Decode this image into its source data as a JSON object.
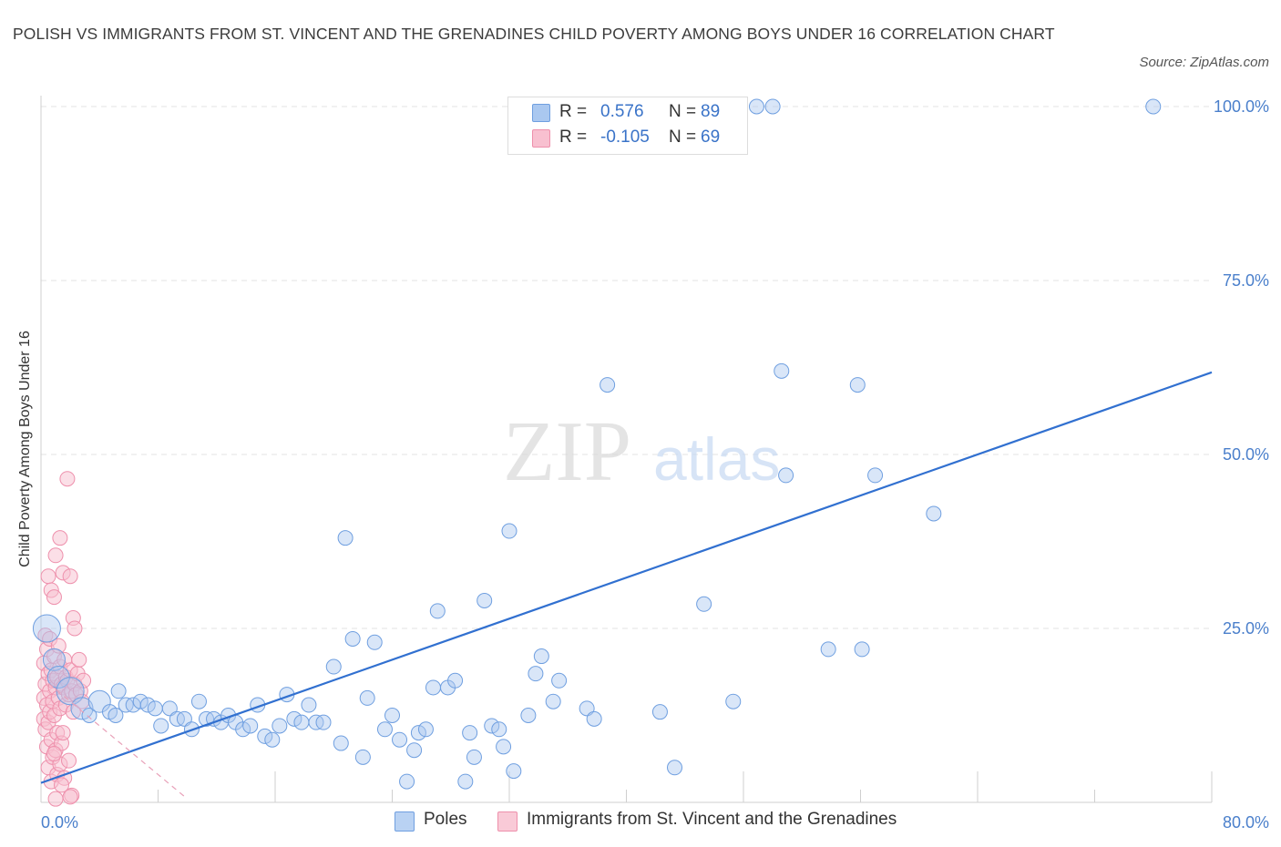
{
  "title": "POLISH VS IMMIGRANTS FROM ST. VINCENT AND THE GRENADINES CHILD POVERTY AMONG BOYS UNDER 16 CORRELATION CHART",
  "source": "Source: ZipAtlas.com",
  "watermark": {
    "zip": "ZIP",
    "atlas": "atlas"
  },
  "legend": {
    "r_label": "R =",
    "n_label": "N =",
    "rows": [
      {
        "r": "0.576",
        "n": "89",
        "color": "#aac8f0",
        "border": "#6f9fe0"
      },
      {
        "r": "-0.105",
        "n": "69",
        "color": "#f8c0d0",
        "border": "#ee90ac"
      }
    ]
  },
  "bottom_legend": [
    {
      "label": "Poles",
      "color": "#b9d2f3",
      "border": "#6f9fe0"
    },
    {
      "label": "Immigrants from St. Vincent and the Grenadines",
      "color": "#f9cad7",
      "border": "#ee90ac"
    }
  ],
  "chart_data": {
    "type": "scatter",
    "title": "POLISH VS IMMIGRANTS FROM ST. VINCENT AND THE GRENADINES CHILD POVERTY AMONG BOYS UNDER 16 CORRELATION CHART",
    "xlabel": "",
    "ylabel": "Child Poverty Among Boys Under 16",
    "xlim": [
      0,
      80
    ],
    "ylim": [
      0,
      100
    ],
    "x_tick_labels": [
      {
        "value": 0,
        "label": "0.0%"
      },
      {
        "value": 80,
        "label": "80.0%"
      }
    ],
    "y_tick_labels": [
      {
        "value": 25,
        "label": "25.0%"
      },
      {
        "value": 50,
        "label": "50.0%"
      },
      {
        "value": 75,
        "label": "75.0%"
      },
      {
        "value": 100,
        "label": "100.0%"
      }
    ],
    "grid": true,
    "legend_position": "top-center",
    "series": [
      {
        "name": "Poles",
        "color": "#6f9fe0",
        "fill": "#aac8f0",
        "trend": {
          "x": [
            0,
            80
          ],
          "y": [
            2.8,
            61.8
          ],
          "color": "#3170d0",
          "style": "solid"
        },
        "points": [
          {
            "x": 0.4,
            "y": 25.0,
            "s": 3
          },
          {
            "x": 0.9,
            "y": 20.5,
            "s": 2
          },
          {
            "x": 1.2,
            "y": 18.0,
            "s": 2
          },
          {
            "x": 2.0,
            "y": 16.0,
            "s": 3
          },
          {
            "x": 2.8,
            "y": 13.5,
            "s": 2
          },
          {
            "x": 3.3,
            "y": 12.5
          },
          {
            "x": 4.0,
            "y": 14.5,
            "s": 2
          },
          {
            "x": 4.7,
            "y": 13.0
          },
          {
            "x": 5.1,
            "y": 12.5
          },
          {
            "x": 5.3,
            "y": 16.0
          },
          {
            "x": 5.8,
            "y": 14.0
          },
          {
            "x": 6.3,
            "y": 14.0
          },
          {
            "x": 6.8,
            "y": 14.5
          },
          {
            "x": 7.3,
            "y": 14.0
          },
          {
            "x": 7.8,
            "y": 13.5
          },
          {
            "x": 8.2,
            "y": 11.0
          },
          {
            "x": 8.8,
            "y": 13.5
          },
          {
            "x": 9.3,
            "y": 12.0
          },
          {
            "x": 9.8,
            "y": 12.0
          },
          {
            "x": 10.3,
            "y": 10.5
          },
          {
            "x": 10.8,
            "y": 14.5
          },
          {
            "x": 11.3,
            "y": 12.0
          },
          {
            "x": 11.8,
            "y": 12.0
          },
          {
            "x": 12.3,
            "y": 11.5
          },
          {
            "x": 12.8,
            "y": 12.5
          },
          {
            "x": 13.3,
            "y": 11.5
          },
          {
            "x": 13.8,
            "y": 10.5
          },
          {
            "x": 14.3,
            "y": 11.0
          },
          {
            "x": 14.8,
            "y": 14.0
          },
          {
            "x": 15.3,
            "y": 9.5
          },
          {
            "x": 15.8,
            "y": 9.0
          },
          {
            "x": 16.3,
            "y": 11.0
          },
          {
            "x": 16.8,
            "y": 15.5
          },
          {
            "x": 17.3,
            "y": 12.0
          },
          {
            "x": 17.8,
            "y": 11.5
          },
          {
            "x": 18.3,
            "y": 14.0
          },
          {
            "x": 18.8,
            "y": 11.5
          },
          {
            "x": 19.3,
            "y": 11.5
          },
          {
            "x": 20.0,
            "y": 19.5
          },
          {
            "x": 20.5,
            "y": 8.5
          },
          {
            "x": 20.8,
            "y": 38.0
          },
          {
            "x": 21.3,
            "y": 23.5
          },
          {
            "x": 22.0,
            "y": 6.5
          },
          {
            "x": 22.3,
            "y": 15.0
          },
          {
            "x": 22.8,
            "y": 23.0
          },
          {
            "x": 23.5,
            "y": 10.5
          },
          {
            "x": 24.0,
            "y": 12.5
          },
          {
            "x": 24.5,
            "y": 9.0
          },
          {
            "x": 25.0,
            "y": 3.0
          },
          {
            "x": 25.5,
            "y": 7.5
          },
          {
            "x": 25.8,
            "y": 10.0
          },
          {
            "x": 26.3,
            "y": 10.5
          },
          {
            "x": 26.8,
            "y": 16.5
          },
          {
            "x": 27.1,
            "y": 27.5
          },
          {
            "x": 27.8,
            "y": 16.5
          },
          {
            "x": 28.3,
            "y": 17.5
          },
          {
            "x": 29.0,
            "y": 3.0
          },
          {
            "x": 29.3,
            "y": 10.0
          },
          {
            "x": 29.6,
            "y": 6.5
          },
          {
            "x": 30.3,
            "y": 29.0
          },
          {
            "x": 30.8,
            "y": 11.0
          },
          {
            "x": 31.3,
            "y": 10.5
          },
          {
            "x": 31.6,
            "y": 8.0
          },
          {
            "x": 32.0,
            "y": 39.0
          },
          {
            "x": 32.3,
            "y": 4.5
          },
          {
            "x": 33.3,
            "y": 12.5
          },
          {
            "x": 33.8,
            "y": 18.5
          },
          {
            "x": 34.2,
            "y": 21.0
          },
          {
            "x": 35.0,
            "y": 14.5
          },
          {
            "x": 35.4,
            "y": 17.5
          },
          {
            "x": 37.3,
            "y": 13.5
          },
          {
            "x": 37.8,
            "y": 12.0
          },
          {
            "x": 38.7,
            "y": 60.0
          },
          {
            "x": 42.3,
            "y": 13.0
          },
          {
            "x": 43.3,
            "y": 5.0
          },
          {
            "x": 45.3,
            "y": 28.5
          },
          {
            "x": 47.3,
            "y": 14.5
          },
          {
            "x": 48.9,
            "y": 100.0
          },
          {
            "x": 50.0,
            "y": 100.0
          },
          {
            "x": 50.6,
            "y": 62.0
          },
          {
            "x": 50.9,
            "y": 47.0
          },
          {
            "x": 53.8,
            "y": 22.0
          },
          {
            "x": 56.1,
            "y": 22.0
          },
          {
            "x": 55.8,
            "y": 60.0
          },
          {
            "x": 57.0,
            "y": 47.0
          },
          {
            "x": 61.0,
            "y": 41.5
          },
          {
            "x": 76.0,
            "y": 100.0
          },
          {
            "x": 41.5,
            "y": 100.0
          },
          {
            "x": 42.0,
            "y": 100.0
          }
        ]
      },
      {
        "name": "Immigrants from St. Vincent and the Grenadines",
        "color": "#ee90ac",
        "fill": "#f8c0d0",
        "trend": {
          "x": [
            0,
            10
          ],
          "y": [
            18.0,
            0.5
          ],
          "color": "#e8a0b8",
          "style": "dashed"
        },
        "points": [
          {
            "x": 0.2,
            "y": 20.0
          },
          {
            "x": 0.2,
            "y": 15.0
          },
          {
            "x": 0.2,
            "y": 12.0
          },
          {
            "x": 0.3,
            "y": 24.0
          },
          {
            "x": 0.3,
            "y": 17.0
          },
          {
            "x": 0.3,
            "y": 10.5
          },
          {
            "x": 0.4,
            "y": 22.0
          },
          {
            "x": 0.4,
            "y": 14.0
          },
          {
            "x": 0.4,
            "y": 8.0
          },
          {
            "x": 0.5,
            "y": 32.5
          },
          {
            "x": 0.5,
            "y": 18.5
          },
          {
            "x": 0.5,
            "y": 11.5
          },
          {
            "x": 0.5,
            "y": 5.0
          },
          {
            "x": 0.6,
            "y": 23.5
          },
          {
            "x": 0.6,
            "y": 16.0
          },
          {
            "x": 0.6,
            "y": 13.0
          },
          {
            "x": 0.7,
            "y": 30.5
          },
          {
            "x": 0.7,
            "y": 19.0
          },
          {
            "x": 0.7,
            "y": 9.0
          },
          {
            "x": 0.7,
            "y": 3.0
          },
          {
            "x": 0.8,
            "y": 17.5
          },
          {
            "x": 0.8,
            "y": 14.5
          },
          {
            "x": 0.8,
            "y": 6.5
          },
          {
            "x": 0.9,
            "y": 29.5
          },
          {
            "x": 0.9,
            "y": 21.0
          },
          {
            "x": 0.9,
            "y": 12.5
          },
          {
            "x": 1.0,
            "y": 35.5
          },
          {
            "x": 1.0,
            "y": 16.5
          },
          {
            "x": 1.0,
            "y": 7.5
          },
          {
            "x": 1.1,
            "y": 18.0
          },
          {
            "x": 1.1,
            "y": 10.0
          },
          {
            "x": 1.1,
            "y": 4.0
          },
          {
            "x": 1.2,
            "y": 22.5
          },
          {
            "x": 1.2,
            "y": 15.0
          },
          {
            "x": 1.3,
            "y": 38.0
          },
          {
            "x": 1.3,
            "y": 19.5
          },
          {
            "x": 1.3,
            "y": 13.5
          },
          {
            "x": 1.3,
            "y": 5.5
          },
          {
            "x": 1.4,
            "y": 17.0
          },
          {
            "x": 1.4,
            "y": 8.5
          },
          {
            "x": 1.5,
            "y": 33.0
          },
          {
            "x": 1.5,
            "y": 16.5
          },
          {
            "x": 1.5,
            "y": 10.0
          },
          {
            "x": 1.6,
            "y": 20.5
          },
          {
            "x": 1.6,
            "y": 3.5
          },
          {
            "x": 1.7,
            "y": 18.0
          },
          {
            "x": 1.7,
            "y": 14.0
          },
          {
            "x": 1.8,
            "y": 46.5
          },
          {
            "x": 1.8,
            "y": 17.5
          },
          {
            "x": 1.9,
            "y": 15.5
          },
          {
            "x": 1.9,
            "y": 6.0
          },
          {
            "x": 2.0,
            "y": 32.5
          },
          {
            "x": 2.0,
            "y": 19.0
          },
          {
            "x": 2.1,
            "y": 16.0
          },
          {
            "x": 2.1,
            "y": 1.0
          },
          {
            "x": 2.2,
            "y": 26.5
          },
          {
            "x": 2.2,
            "y": 13.0
          },
          {
            "x": 2.3,
            "y": 17.0
          },
          {
            "x": 2.3,
            "y": 25.0
          },
          {
            "x": 2.4,
            "y": 15.5
          },
          {
            "x": 2.5,
            "y": 18.5
          },
          {
            "x": 2.6,
            "y": 20.5
          },
          {
            "x": 2.7,
            "y": 16.0
          },
          {
            "x": 2.8,
            "y": 14.5
          },
          {
            "x": 2.9,
            "y": 17.5
          },
          {
            "x": 1.0,
            "y": 0.5
          },
          {
            "x": 1.4,
            "y": 2.5
          },
          {
            "x": 0.9,
            "y": 7.0
          },
          {
            "x": 2.0,
            "y": 0.8
          }
        ]
      }
    ]
  }
}
